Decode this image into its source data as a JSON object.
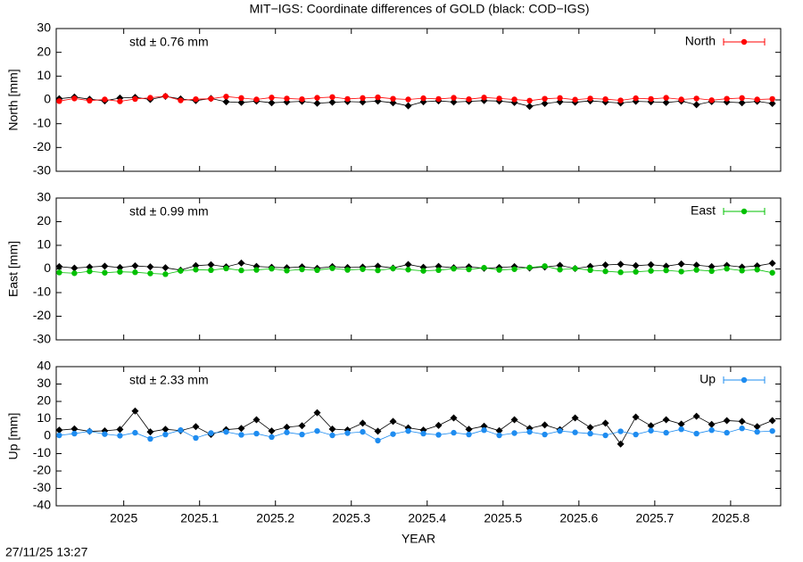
{
  "title": "MIT−IGS: Coordinate differences of GOLD (black: COD−IGS)",
  "timestamp": "27/11/25 13:27",
  "chart_data": [
    {
      "type": "line",
      "ylabel": "North [mm]",
      "annotation": "std ± 0.76 mm",
      "legend": "top-right",
      "x": [
        2024.915,
        2024.935,
        2024.955,
        2024.975,
        2024.995,
        2025.015,
        2025.035,
        2025.055,
        2025.075,
        2025.095,
        2025.115,
        2025.135,
        2025.155,
        2025.175,
        2025.195,
        2025.215,
        2025.235,
        2025.255,
        2025.275,
        2025.295,
        2025.315,
        2025.335,
        2025.355,
        2025.375,
        2025.395,
        2025.415,
        2025.435,
        2025.455,
        2025.475,
        2025.495,
        2025.515,
        2025.535,
        2025.555,
        2025.575,
        2025.595,
        2025.615,
        2025.635,
        2025.655,
        2025.675,
        2025.695,
        2025.715,
        2025.735,
        2025.755,
        2025.775,
        2025.795,
        2025.815,
        2025.835,
        2025.855
      ],
      "xlim": [
        2024.911,
        2025.866
      ],
      "xticks": [
        2025,
        2025.1,
        2025.2,
        2025.3,
        2025.4,
        2025.5,
        2025.6,
        2025.7,
        2025.8
      ],
      "ylim": [
        -30,
        30
      ],
      "yticks": [
        -30,
        -20,
        -10,
        0,
        10,
        20,
        30
      ],
      "series": [
        {
          "color": "#000000",
          "marker": "diamond",
          "values": [
            0.5,
            1.2,
            0.3,
            -0.4,
            0.8,
            1.1,
            0.2,
            1.5,
            0.4,
            -0.3,
            0.6,
            -0.8,
            -1.1,
            -0.5,
            -1.2,
            -0.9,
            -0.6,
            -1.4,
            -1.0,
            -0.7,
            -0.9,
            -0.5,
            -1.2,
            -2.5,
            -0.8,
            -0.4,
            -0.9,
            -0.6,
            -0.3,
            -0.5,
            -1.1,
            -2.7,
            -1.5,
            -0.8,
            -1.0,
            -0.4,
            -0.9,
            -1.3,
            -0.6,
            -0.8,
            -1.1,
            -0.5,
            -2.0,
            -0.7,
            -0.9,
            -1.2,
            -0.6,
            -1.5
          ]
        },
        {
          "name": "North",
          "color": "#ff0000",
          "marker": "circle",
          "values": [
            -0.5,
            0.6,
            -0.3,
            0.2,
            -0.6,
            0.4,
            0.9,
            1.6,
            -0.2,
            0.3,
            0.5,
            1.4,
            0.8,
            0.2,
            1.0,
            0.6,
            0.3,
            0.9,
            1.2,
            0.4,
            0.8,
            1.1,
            0.5,
            0.2,
            0.7,
            0.4,
            0.9,
            0.3,
            1.0,
            0.6,
            0.2,
            -0.3,
            0.5,
            0.8,
            0.1,
            0.6,
            0.3,
            -0.2,
            0.7,
            0.4,
            0.9,
            0.2,
            0.6,
            -0.1,
            0.5,
            0.8,
            0.2,
            0.4
          ]
        }
      ]
    },
    {
      "type": "line",
      "ylabel": "East [mm]",
      "annotation": "std ± 0.99 mm",
      "legend": "top-right",
      "x": [
        2024.915,
        2024.935,
        2024.955,
        2024.975,
        2024.995,
        2025.015,
        2025.035,
        2025.055,
        2025.075,
        2025.095,
        2025.115,
        2025.135,
        2025.155,
        2025.175,
        2025.195,
        2025.215,
        2025.235,
        2025.255,
        2025.275,
        2025.295,
        2025.315,
        2025.335,
        2025.355,
        2025.375,
        2025.395,
        2025.415,
        2025.435,
        2025.455,
        2025.475,
        2025.495,
        2025.515,
        2025.535,
        2025.555,
        2025.575,
        2025.595,
        2025.615,
        2025.635,
        2025.655,
        2025.675,
        2025.695,
        2025.715,
        2025.735,
        2025.755,
        2025.775,
        2025.795,
        2025.815,
        2025.835,
        2025.855
      ],
      "xlim": [
        2024.911,
        2025.866
      ],
      "xticks": [
        2025,
        2025.1,
        2025.2,
        2025.3,
        2025.4,
        2025.5,
        2025.6,
        2025.7,
        2025.8
      ],
      "ylim": [
        -30,
        30
      ],
      "yticks": [
        -30,
        -20,
        -10,
        0,
        10,
        20,
        30
      ],
      "series": [
        {
          "color": "#000000",
          "marker": "diamond",
          "values": [
            1.0,
            0.4,
            0.8,
            1.2,
            0.6,
            1.3,
            0.9,
            0.5,
            -0.5,
            1.4,
            1.8,
            0.9,
            2.5,
            1.1,
            0.7,
            0.5,
            0.9,
            0.3,
            1.0,
            0.6,
            0.8,
            1.2,
            0.4,
            1.9,
            0.7,
            1.1,
            0.5,
            0.9,
            0.3,
            0.6,
            1.0,
            0.4,
            0.8,
            1.5,
            0.2,
            1.1,
            1.7,
            2.0,
            1.4,
            1.8,
            1.2,
            2.1,
            1.6,
            1.0,
            1.5,
            0.8,
            1.3,
            2.4
          ]
        },
        {
          "name": "East",
          "color": "#00c000",
          "marker": "circle",
          "values": [
            -1.5,
            -1.8,
            -1.0,
            -1.6,
            -1.2,
            -1.4,
            -1.9,
            -2.2,
            -0.8,
            -0.3,
            -0.5,
            0.2,
            -0.6,
            -0.4,
            0.1,
            -0.7,
            -0.2,
            -0.5,
            0.3,
            -0.4,
            -0.1,
            -0.6,
            0.2,
            -0.3,
            -0.8,
            -0.5,
            0.1,
            -0.2,
            0.5,
            -0.4,
            -0.1,
            0.6,
            1.2,
            -0.3,
            0.2,
            -0.5,
            -1.0,
            -1.4,
            -1.2,
            -0.8,
            -0.6,
            -1.1,
            -0.4,
            -0.9,
            0.1,
            -0.7,
            -0.3,
            -1.6
          ]
        }
      ]
    },
    {
      "type": "line",
      "ylabel": "Up [mm]",
      "xlabel": "YEAR",
      "annotation": "std ± 2.33 mm",
      "legend": "top-right",
      "x": [
        2024.915,
        2024.935,
        2024.955,
        2024.975,
        2024.995,
        2025.015,
        2025.035,
        2025.055,
        2025.075,
        2025.095,
        2025.115,
        2025.135,
        2025.155,
        2025.175,
        2025.195,
        2025.215,
        2025.235,
        2025.255,
        2025.275,
        2025.295,
        2025.315,
        2025.335,
        2025.355,
        2025.375,
        2025.395,
        2025.415,
        2025.435,
        2025.455,
        2025.475,
        2025.495,
        2025.515,
        2025.535,
        2025.555,
        2025.575,
        2025.595,
        2025.615,
        2025.635,
        2025.655,
        2025.675,
        2025.695,
        2025.715,
        2025.735,
        2025.755,
        2025.775,
        2025.795,
        2025.815,
        2025.835,
        2025.855
      ],
      "xlim": [
        2024.911,
        2025.866
      ],
      "xticks": [
        2025,
        2025.1,
        2025.2,
        2025.3,
        2025.4,
        2025.5,
        2025.6,
        2025.7,
        2025.8
      ],
      "ylim": [
        -40,
        40
      ],
      "yticks": [
        -40,
        -30,
        -20,
        -10,
        0,
        10,
        20,
        30,
        40
      ],
      "series": [
        {
          "color": "#000000",
          "marker": "diamond",
          "values": [
            3.5,
            4.2,
            2.8,
            3.1,
            3.9,
            14.5,
            2.5,
            4.0,
            3.2,
            5.5,
            1.0,
            3.8,
            4.5,
            9.5,
            3.0,
            5.2,
            6.0,
            13.5,
            4.1,
            3.6,
            7.5,
            2.9,
            8.5,
            4.8,
            3.5,
            6.2,
            10.5,
            4.0,
            5.8,
            3.2,
            9.5,
            4.5,
            6.5,
            3.8,
            10.5,
            5.0,
            7.5,
            -4.5,
            11.0,
            6.0,
            9.5,
            7.0,
            11.5,
            6.8,
            9.0,
            8.5,
            5.5,
            9.0
          ]
        },
        {
          "name": "Up",
          "color": "#1e8cf0",
          "marker": "circle",
          "values": [
            0.5,
            1.5,
            2.8,
            1.2,
            0.3,
            2.0,
            -1.5,
            1.0,
            3.5,
            -1.0,
            1.8,
            2.5,
            0.8,
            1.5,
            -0.5,
            2.2,
            1.0,
            3.0,
            0.5,
            1.8,
            2.5,
            -2.5,
            1.2,
            3.0,
            1.5,
            0.8,
            2.0,
            1.0,
            3.5,
            0.5,
            1.8,
            2.5,
            1.0,
            3.0,
            2.2,
            1.5,
            0.5,
            2.8,
            1.0,
            3.2,
            2.0,
            4.0,
            1.5,
            3.5,
            2.0,
            4.5,
            2.5,
            3.0
          ]
        }
      ]
    }
  ]
}
